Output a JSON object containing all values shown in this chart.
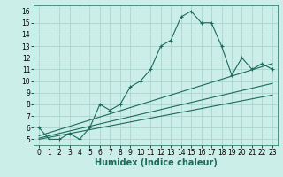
{
  "xlabel": "Humidex (Indice chaleur)",
  "bg_color": "#cceee8",
  "grid_color": "#aad4cc",
  "line_color": "#1a6b5a",
  "xlim": [
    -0.5,
    23.5
  ],
  "ylim": [
    4.5,
    16.5
  ],
  "xticks": [
    0,
    1,
    2,
    3,
    4,
    5,
    6,
    7,
    8,
    9,
    10,
    11,
    12,
    13,
    14,
    15,
    16,
    17,
    18,
    19,
    20,
    21,
    22,
    23
  ],
  "yticks": [
    5,
    6,
    7,
    8,
    9,
    10,
    11,
    12,
    13,
    14,
    15,
    16
  ],
  "main_x": [
    0,
    1,
    2,
    3,
    4,
    5,
    6,
    7,
    8,
    9,
    10,
    11,
    12,
    13,
    14,
    15,
    16,
    17,
    18,
    19,
    20,
    21,
    22,
    23
  ],
  "main_y": [
    6.0,
    5.0,
    5.0,
    5.5,
    5.0,
    6.0,
    8.0,
    7.5,
    8.0,
    9.5,
    10.0,
    11.0,
    13.0,
    13.5,
    15.5,
    16.0,
    15.0,
    15.0,
    13.0,
    10.5,
    12.0,
    11.0,
    11.5,
    11.0
  ],
  "line1_x": [
    0,
    23
  ],
  "line1_y": [
    5.3,
    11.5
  ],
  "line2_x": [
    0,
    23
  ],
  "line2_y": [
    5.1,
    9.8
  ],
  "line3_x": [
    0,
    23
  ],
  "line3_y": [
    5.0,
    8.8
  ],
  "marker_size": 2.5,
  "line_width": 0.8,
  "tick_fontsize": 5.5,
  "label_fontsize": 7
}
